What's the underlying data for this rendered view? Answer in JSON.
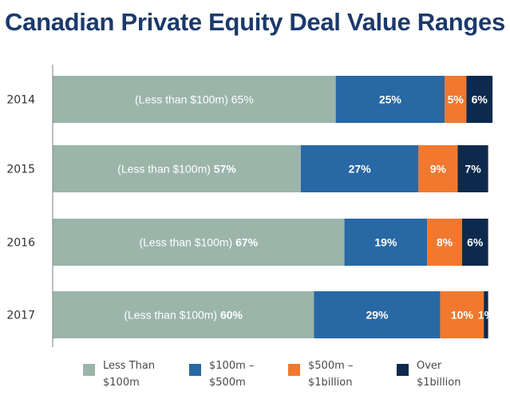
{
  "title": "Canadian Private Equity Deal Value Ranges",
  "colors": {
    "less_than_100m": "#9bb5aa",
    "100m_500m": "#2868a5",
    "500m_1b": "#f0782f",
    "over_1b": "#0d2a4d",
    "axis": "#7f7f7f"
  },
  "chart_data": {
    "type": "bar",
    "orientation": "horizontal",
    "stacked": true,
    "title": "Canadian Private Equity Deal Value Ranges",
    "xlim": [
      0,
      103
    ],
    "categories": [
      "2014",
      "2015",
      "2016",
      "2017"
    ],
    "category_prefix": "(Less than $100m)",
    "series": [
      {
        "name": "Less Than $100m",
        "values": [
          65,
          57,
          67,
          60
        ],
        "labels": [
          "65%",
          "57%",
          "67%",
          "60%"
        ]
      },
      {
        "name": "$100m – $500m",
        "values": [
          25,
          27,
          19,
          29
        ],
        "labels": [
          "25%",
          "27%",
          "19%",
          "29%"
        ]
      },
      {
        "name": "$500m – $1billion",
        "values": [
          5,
          9,
          8,
          10
        ],
        "labels": [
          "5%",
          "9%",
          "8%",
          "10%"
        ]
      },
      {
        "name": "Over $1billion",
        "values": [
          6,
          7,
          6,
          1
        ],
        "labels": [
          "6%",
          "7%",
          "6%",
          "1%"
        ]
      }
    ],
    "legend_position": "bottom",
    "grid": false
  },
  "legend": [
    {
      "label": "Less Than\n$100m"
    },
    {
      "label": "$100m –\n$500m"
    },
    {
      "label": "$500m –\n$1billion"
    },
    {
      "label": "Over\n$1billion"
    }
  ]
}
